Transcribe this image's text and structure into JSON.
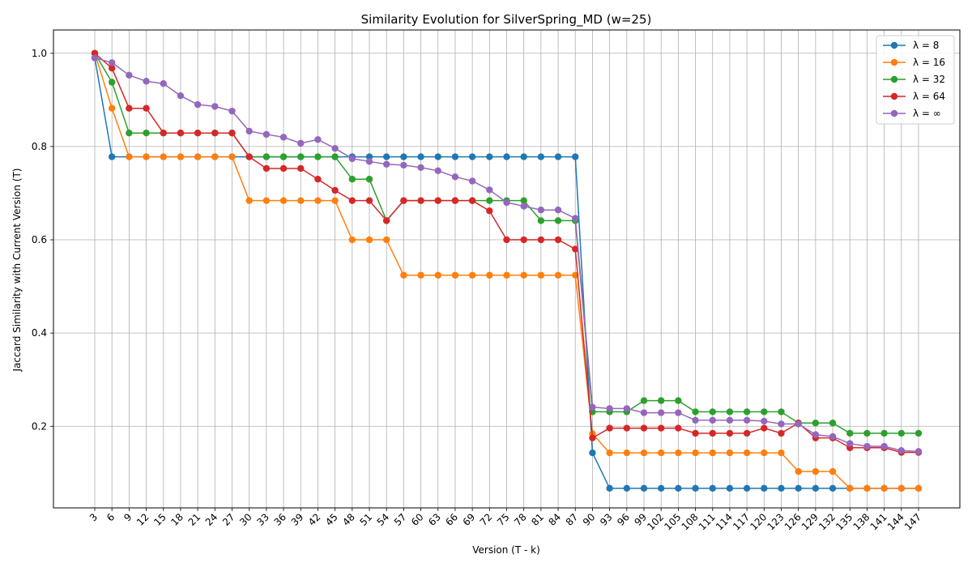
{
  "chart_data": {
    "type": "line",
    "title": "Similarity Evolution for SilverSpring_MD (w=25)",
    "xlabel": "Version (T - k)",
    "ylabel": "Jaccard Similarity with Current Version (T)",
    "ylim": [
      0.025,
      1.05
    ],
    "yticks": [
      0.2,
      0.4,
      0.6,
      0.8,
      1.0
    ],
    "grid": true,
    "legend_position": "top-right",
    "categories": [
      "3",
      "6",
      "9",
      "12",
      "15",
      "18",
      "21",
      "24",
      "27",
      "30",
      "33",
      "36",
      "39",
      "42",
      "45",
      "48",
      "51",
      "54",
      "57",
      "60",
      "63",
      "66",
      "69",
      "72",
      "75",
      "78",
      "81",
      "84",
      "87",
      "90",
      "93",
      "96",
      "99",
      "102",
      "105",
      "108",
      "111",
      "114",
      "117",
      "120",
      "123",
      "126",
      "129",
      "132",
      "135",
      "138",
      "141",
      "144",
      "147"
    ],
    "series": [
      {
        "name": "λ = 8",
        "color": "#1f77b4",
        "values": [
          0.99,
          0.778,
          0.778,
          0.778,
          0.778,
          0.778,
          0.778,
          0.778,
          0.778,
          0.778,
          0.778,
          0.778,
          0.778,
          0.778,
          0.778,
          0.778,
          0.778,
          0.778,
          0.778,
          0.778,
          0.778,
          0.778,
          0.778,
          0.778,
          0.778,
          0.778,
          0.778,
          0.778,
          0.778,
          0.143,
          0.067,
          0.067,
          0.067,
          0.067,
          0.067,
          0.067,
          0.067,
          0.067,
          0.067,
          0.067,
          0.067,
          0.067,
          0.067,
          0.067,
          0.067,
          0.067,
          0.067,
          0.067,
          0.067
        ]
      },
      {
        "name": "λ = 16",
        "color": "#ff7f0e",
        "values": [
          1.0,
          0.882,
          0.778,
          0.778,
          0.778,
          0.778,
          0.778,
          0.778,
          0.778,
          0.684,
          0.684,
          0.684,
          0.684,
          0.684,
          0.684,
          0.6,
          0.6,
          0.6,
          0.524,
          0.524,
          0.524,
          0.524,
          0.524,
          0.524,
          0.524,
          0.524,
          0.524,
          0.524,
          0.524,
          0.184,
          0.143,
          0.143,
          0.143,
          0.143,
          0.143,
          0.143,
          0.143,
          0.143,
          0.143,
          0.143,
          0.143,
          0.103,
          0.103,
          0.103,
          0.067,
          0.067,
          0.067,
          0.067,
          0.067
        ]
      },
      {
        "name": "λ = 32",
        "color": "#2ca02c",
        "values": [
          1.0,
          0.938,
          0.829,
          0.829,
          0.829,
          0.829,
          0.829,
          0.829,
          0.829,
          0.778,
          0.778,
          0.778,
          0.778,
          0.778,
          0.778,
          0.73,
          0.73,
          0.641,
          0.684,
          0.684,
          0.684,
          0.684,
          0.684,
          0.684,
          0.684,
          0.684,
          0.641,
          0.641,
          0.641,
          0.231,
          0.231,
          0.231,
          0.255,
          0.255,
          0.255,
          0.231,
          0.231,
          0.231,
          0.231,
          0.231,
          0.231,
          0.207,
          0.207,
          0.207,
          0.185,
          0.185,
          0.185,
          0.185,
          0.185
        ]
      },
      {
        "name": "λ = 64",
        "color": "#d62728",
        "values": [
          1.0,
          0.968,
          0.882,
          0.882,
          0.829,
          0.829,
          0.829,
          0.829,
          0.829,
          0.778,
          0.753,
          0.753,
          0.753,
          0.73,
          0.706,
          0.684,
          0.684,
          0.641,
          0.684,
          0.684,
          0.684,
          0.684,
          0.684,
          0.662,
          0.6,
          0.6,
          0.6,
          0.6,
          0.58,
          0.175,
          0.196,
          0.196,
          0.196,
          0.196,
          0.196,
          0.185,
          0.185,
          0.185,
          0.185,
          0.196,
          0.185,
          0.207,
          0.175,
          0.175,
          0.154,
          0.154,
          0.154,
          0.144,
          0.144
        ]
      },
      {
        "name": "λ = ∞",
        "color": "#9467bd",
        "values": [
          0.99,
          0.98,
          0.953,
          0.94,
          0.935,
          0.909,
          0.89,
          0.886,
          0.876,
          0.833,
          0.826,
          0.82,
          0.807,
          0.815,
          0.796,
          0.774,
          0.768,
          0.762,
          0.76,
          0.755,
          0.748,
          0.735,
          0.726,
          0.707,
          0.68,
          0.672,
          0.664,
          0.664,
          0.646,
          0.241,
          0.238,
          0.238,
          0.229,
          0.229,
          0.229,
          0.213,
          0.213,
          0.213,
          0.213,
          0.211,
          0.205,
          0.205,
          0.182,
          0.178,
          0.163,
          0.157,
          0.157,
          0.148,
          0.146
        ]
      }
    ]
  }
}
